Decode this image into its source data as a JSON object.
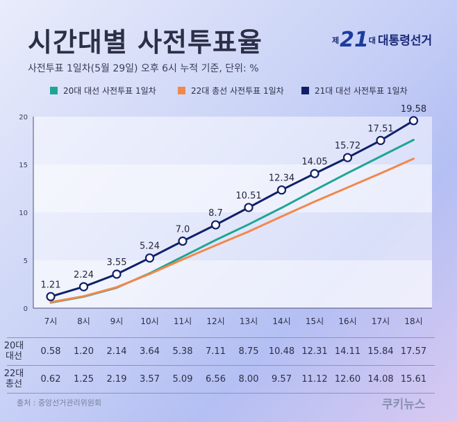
{
  "header": {
    "title": "시간대별 사전투표율",
    "subtitle": "사전투표 1일차(5월 29일) 오후 6시 누적 기준, 단위: %",
    "logo": {
      "prefix": "제",
      "number": "21",
      "suffix": "대",
      "name": "대통령선거"
    }
  },
  "colors": {
    "s20": "#20a595",
    "s22": "#f2884a",
    "s21": "#102068"
  },
  "chart_data": {
    "type": "line",
    "title": "시간대별 사전투표율",
    "subtitle": "사전투표 1일차(5월 29일) 오후 6시 누적 기준, 단위: %",
    "xlabel": "",
    "ylabel": "",
    "categories": [
      "7시",
      "8시",
      "9시",
      "10시",
      "11시",
      "12시",
      "13시",
      "14시",
      "15시",
      "16시",
      "17시",
      "18시"
    ],
    "y_ticks": [
      "0",
      "5",
      "10",
      "15",
      "20"
    ],
    "ylim": [
      0,
      20
    ],
    "grid": "alternating horizontal bands",
    "legend_position": "top",
    "series": [
      {
        "name": "20대 대선 사전투표 1일차",
        "color": "#20a595",
        "values": [
          0.58,
          1.2,
          2.14,
          3.64,
          5.38,
          7.11,
          8.75,
          10.48,
          12.31,
          14.11,
          15.84,
          17.57
        ]
      },
      {
        "name": "22대 총선 사전투표 1일차",
        "color": "#f2884a",
        "values": [
          0.62,
          1.25,
          2.19,
          3.57,
          5.09,
          6.56,
          8.0,
          9.57,
          11.12,
          12.6,
          14.08,
          15.61
        ]
      },
      {
        "name": "21대 대선 사전투표 1일차",
        "color": "#102068",
        "values": [
          1.21,
          2.24,
          3.55,
          5.24,
          7.0,
          8.7,
          10.51,
          12.34,
          14.05,
          15.72,
          17.51,
          19.58
        ],
        "labels": [
          "1.21",
          "2.24",
          "3.55",
          "5.24",
          "7.0",
          "8.7",
          "10.51",
          "12.34",
          "14.05",
          "15.72",
          "17.51",
          "19.58"
        ]
      }
    ]
  },
  "table": {
    "rows": [
      {
        "label_line1": "20대",
        "label_line2": "대선",
        "values": [
          "0.58",
          "1.20",
          "2.14",
          "3.64",
          "5.38",
          "7.11",
          "8.75",
          "10.48",
          "12.31",
          "14.11",
          "15.84",
          "17.57"
        ]
      },
      {
        "label_line1": "22대",
        "label_line2": "총선",
        "values": [
          "0.62",
          "1.25",
          "2.19",
          "3.57",
          "5.09",
          "6.56",
          "8.00",
          "9.57",
          "11.12",
          "12.60",
          "14.08",
          "15.61"
        ]
      }
    ]
  },
  "footer": {
    "source": "출처 : 중앙선거관리위원회",
    "brand": "쿠키뉴스"
  }
}
